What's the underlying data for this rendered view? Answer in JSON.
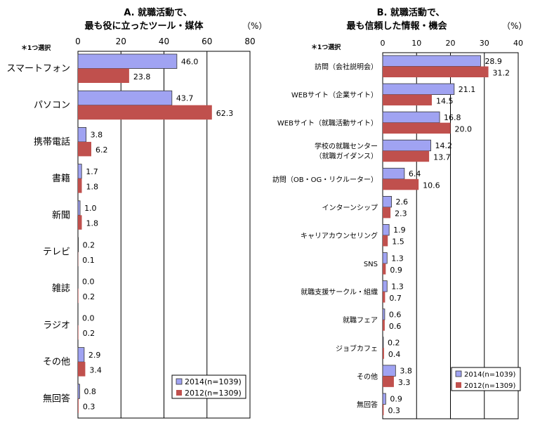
{
  "colors": {
    "s2014": "#a0a3f2",
    "s2012": "#c0504d",
    "stroke": "#333333",
    "grid": "#000000"
  },
  "chart_data": [
    {
      "type": "bar",
      "orientation": "horizontal",
      "title_line1": "A. 就職活動で、",
      "title_line2": "最も役に立ったツール・媒体",
      "unit": "（%）",
      "note": "＊1つ選択",
      "xlim": [
        0,
        80
      ],
      "ticks": [
        0,
        20,
        40,
        60,
        80
      ],
      "grid": true,
      "legend_position": "bottom-right",
      "categories": [
        "スマートフォン",
        "パソコン",
        "携帯電話",
        "書籍",
        "新聞",
        "テレビ",
        "雑誌",
        "ラジオ",
        "その他",
        "無回答"
      ],
      "series": [
        {
          "name": "2014(n=1039)",
          "values": [
            46.0,
            43.7,
            3.8,
            1.7,
            1.0,
            0.2,
            0.0,
            0.0,
            2.9,
            0.8
          ],
          "labels": [
            "46.0",
            "43.7",
            "3.8",
            "1.7",
            "1.0",
            "0.2",
            "0.0",
            "0.0",
            "2.9",
            "0.8"
          ]
        },
        {
          "name": "2012(n=1309)",
          "values": [
            23.8,
            62.3,
            6.2,
            1.8,
            1.8,
            0.1,
            0.2,
            0.2,
            3.4,
            0.3
          ],
          "labels": [
            "23.8",
            "62.3",
            "6.2",
            "1.8",
            "1.8",
            "0.1",
            "0.2",
            "0.2",
            "3.4",
            "0.3"
          ]
        }
      ]
    },
    {
      "type": "bar",
      "orientation": "horizontal",
      "title_line1": "B. 就職活動で、",
      "title_line2": "最も信頼した情報・機会",
      "unit": "（%）",
      "note": "＊1つ選択",
      "xlim": [
        0,
        40
      ],
      "ticks": [
        0,
        10,
        20,
        30,
        40
      ],
      "grid": true,
      "legend_position": "bottom-right",
      "categories": [
        "訪問（会社説明会）",
        "WEBサイト（企業サイト）",
        "WEBサイト（就職活動サイト）",
        "学校の就職センター\n（就職ガイダンス）",
        "訪問（OB・OG・リクルーター）",
        "インターンシップ",
        "キャリアカウンセリング",
        "SNS",
        "就職支援サークル・組織",
        "就職フェア",
        "ジョブカフェ",
        "その他",
        "無回答"
      ],
      "series": [
        {
          "name": "2014(n=1039)",
          "values": [
            28.9,
            21.1,
            16.8,
            14.2,
            6.4,
            2.6,
            1.9,
            1.3,
            1.3,
            0.6,
            0.2,
            3.8,
            0.9
          ],
          "labels": [
            "28.9",
            "21.1",
            "16.8",
            "14.2",
            "6.4",
            "2.6",
            "1.9",
            "1.3",
            "1.3",
            "0.6",
            "0.2",
            "3.8",
            "0.9"
          ]
        },
        {
          "name": "2012(n=1309)",
          "values": [
            31.2,
            14.5,
            20.0,
            13.7,
            10.6,
            2.3,
            1.5,
            0.9,
            0.7,
            0.6,
            0.4,
            3.3,
            0.3
          ],
          "labels": [
            "31.2",
            "14.5",
            "20.0",
            "13.7",
            "10.6",
            "2.3",
            "1.5",
            "0.9",
            "0.7",
            "0.6",
            "0.4",
            "3.3",
            "0.3"
          ]
        }
      ]
    }
  ]
}
